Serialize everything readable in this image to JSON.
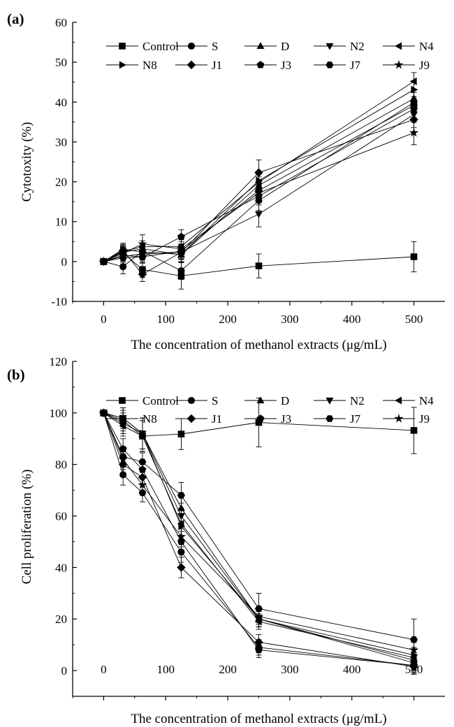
{
  "chart_data": [
    {
      "type": "line",
      "panel_label": "(a)",
      "xlabel": "The concentration of methanol extracts (μg/mL)",
      "ylabel": "Cytotoxity (%)",
      "xlim": [
        -50,
        550
      ],
      "ylim": [
        -10,
        60
      ],
      "xticks": [
        0,
        100,
        200,
        300,
        400,
        500
      ],
      "yticks": [
        -10,
        0,
        10,
        20,
        30,
        40,
        50,
        60
      ],
      "legend": [
        "Control",
        "S",
        "D",
        "N2",
        "N4",
        "N8",
        "J1",
        "J3",
        "J7",
        "J9"
      ],
      "legend_position": "top",
      "x": [
        0,
        31.25,
        62.5,
        125,
        250,
        500
      ],
      "series": [
        {
          "name": "Control",
          "marker": "square",
          "values": [
            0,
            2.2,
            -2.0,
            -3.6,
            -1.1,
            1.2
          ],
          "errors": [
            0,
            1.5,
            2.0,
            3.3,
            3.0,
            3.8
          ]
        },
        {
          "name": "S",
          "marker": "circle",
          "values": [
            0,
            -1.3,
            2.6,
            -2.3,
            15.3,
            39.9
          ],
          "errors": [
            0,
            1.8,
            1.8,
            2.2,
            2.5,
            2.5
          ]
        },
        {
          "name": "D",
          "marker": "triangle-up",
          "values": [
            0,
            2.3,
            3.2,
            1.7,
            19.1,
            40.9
          ],
          "errors": [
            0,
            1.5,
            1.5,
            2.0,
            2.2,
            2.2
          ]
        },
        {
          "name": "N2",
          "marker": "triangle-down",
          "values": [
            0,
            1.3,
            1.9,
            2.4,
            11.9,
            36.9
          ],
          "errors": [
            0,
            1.5,
            1.5,
            1.8,
            3.2,
            2.0
          ]
        },
        {
          "name": "N4",
          "marker": "triangle-left",
          "values": [
            0,
            2.6,
            3.7,
            3.8,
            19.9,
            45.2
          ],
          "errors": [
            0,
            1.5,
            1.5,
            1.8,
            2.2,
            2.2
          ]
        },
        {
          "name": "N8",
          "marker": "triangle-right",
          "values": [
            0,
            3.1,
            2.4,
            1.8,
            20.3,
            43.1
          ],
          "errors": [
            0,
            1.5,
            1.5,
            1.8,
            2.2,
            2.2
          ]
        },
        {
          "name": "J1",
          "marker": "diamond",
          "values": [
            0,
            2.8,
            -3.2,
            2.3,
            22.3,
            35.6
          ],
          "errors": [
            0,
            1.5,
            1.8,
            1.8,
            3.2,
            2.0
          ]
        },
        {
          "name": "J3",
          "marker": "pentagon",
          "values": [
            0,
            1.6,
            1.1,
            6.2,
            16.4,
            38.3
          ],
          "errors": [
            0,
            1.5,
            1.5,
            1.8,
            2.2,
            2.2
          ]
        },
        {
          "name": "J7",
          "marker": "hexagon",
          "values": [
            0,
            0.9,
            1.2,
            2.6,
            17.8,
            39.2
          ],
          "errors": [
            0,
            1.5,
            1.5,
            1.8,
            2.2,
            2.2
          ]
        },
        {
          "name": "J9",
          "marker": "star",
          "values": [
            0,
            2.1,
            4.4,
            3.2,
            17.2,
            32.3
          ],
          "errors": [
            0,
            1.5,
            2.3,
            1.8,
            2.2,
            3.0
          ]
        }
      ]
    },
    {
      "type": "line",
      "panel_label": "(b)",
      "xlabel": "The concentration of methanol extracts (μg/mL)",
      "ylabel": "Cell proliferation (%)",
      "xlim": [
        -50,
        550
      ],
      "ylim": [
        -10,
        120
      ],
      "xticks": [
        0,
        100,
        200,
        300,
        400,
        500
      ],
      "yticks": [
        0,
        20,
        40,
        60,
        80,
        100,
        120
      ],
      "legend": [
        "Control",
        "S",
        "D",
        "N2",
        "N4",
        "N8",
        "J1",
        "J3",
        "J7",
        "J9"
      ],
      "legend_position": "top",
      "x": [
        0,
        31.25,
        62.5,
        125,
        250,
        500
      ],
      "series": [
        {
          "name": "Control",
          "marker": "square",
          "values": [
            100,
            97,
            91,
            91.8,
            96.3,
            93.2
          ],
          "errors": [
            0,
            4,
            6,
            6,
            9.5,
            9
          ]
        },
        {
          "name": "S",
          "marker": "circle",
          "values": [
            100,
            76,
            69,
            46,
            9,
            2
          ],
          "errors": [
            0,
            4,
            3.5,
            4,
            3,
            3
          ]
        },
        {
          "name": "D",
          "marker": "triangle-up",
          "values": [
            100,
            98,
            92,
            63,
            20,
            4
          ],
          "errors": [
            0,
            4,
            6,
            5,
            3,
            3
          ]
        },
        {
          "name": "N2",
          "marker": "triangle-down",
          "values": [
            100,
            98,
            92,
            60,
            20,
            3
          ],
          "errors": [
            0,
            4,
            6,
            5,
            3,
            3
          ]
        },
        {
          "name": "N4",
          "marker": "triangle-left",
          "values": [
            100,
            95,
            91,
            57,
            19,
            5
          ],
          "errors": [
            0,
            4,
            6,
            5,
            3,
            3
          ]
        },
        {
          "name": "N8",
          "marker": "triangle-right",
          "values": [
            100,
            96,
            92,
            56,
            20,
            6
          ],
          "errors": [
            0,
            4,
            6,
            5,
            3,
            3
          ]
        },
        {
          "name": "J1",
          "marker": "diamond",
          "values": [
            100,
            80,
            75,
            40,
            11,
            1.5
          ],
          "errors": [
            0,
            4,
            3.5,
            4,
            3,
            3
          ]
        },
        {
          "name": "J3",
          "marker": "pentagon",
          "values": [
            100,
            86,
            78,
            50,
            8,
            2
          ],
          "errors": [
            0,
            4,
            3.5,
            4,
            3,
            3
          ]
        },
        {
          "name": "J7",
          "marker": "hexagon",
          "values": [
            100,
            83,
            81,
            68,
            24,
            12
          ],
          "errors": [
            0,
            4,
            3.5,
            5,
            6,
            8
          ]
        },
        {
          "name": "J9",
          "marker": "star",
          "values": [
            100,
            82,
            72,
            52,
            21,
            8
          ],
          "errors": [
            0,
            4,
            3.5,
            4,
            3,
            3
          ]
        }
      ]
    }
  ]
}
